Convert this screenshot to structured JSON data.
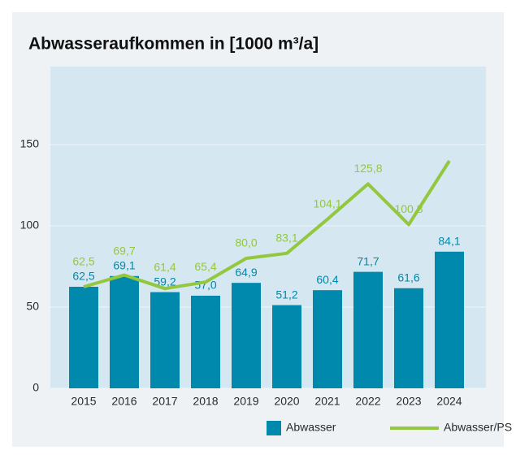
{
  "chart_data": {
    "type": "bar-line",
    "title": "Abwasseraufkommen in [1000 m³/a]",
    "categories": [
      "2015",
      "2016",
      "2017",
      "2018",
      "2019",
      "2020",
      "2021",
      "2022",
      "2023",
      "2024"
    ],
    "series": [
      {
        "name": "Abwasser",
        "type": "bar",
        "color": "#0088ad",
        "values": [
          62.5,
          69.1,
          59.2,
          57.0,
          64.9,
          51.2,
          60.4,
          71.7,
          61.6,
          84.1
        ],
        "value_labels": [
          "62,5",
          "69,1",
          "59,2",
          "57,0",
          "64,9",
          "51,2",
          "60,4",
          "71,7",
          "61,6",
          "84,1"
        ]
      },
      {
        "name": "Abwasser/PS",
        "type": "line",
        "color": "#93c83e",
        "values": [
          62.5,
          69.7,
          61.4,
          65.4,
          80.0,
          83.1,
          104.1,
          125.8,
          100.8,
          140
        ],
        "value_labels": [
          "62,5",
          "69,7",
          "61,4",
          "65,4",
          "80,0",
          "83,1",
          "104,1",
          "125,8",
          "100,8",
          null
        ]
      }
    ],
    "ylim": [
      0,
      198
    ],
    "yticks": [
      0,
      50,
      100,
      150
    ],
    "grid": true
  }
}
